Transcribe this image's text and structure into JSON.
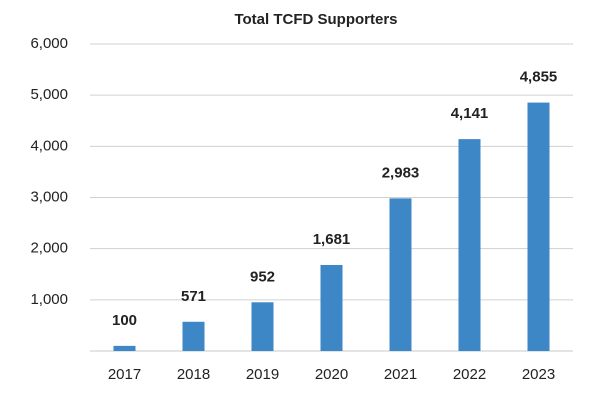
{
  "chart_data": {
    "type": "bar",
    "title": "Total TCFD Supporters",
    "categories": [
      "2017",
      "2018",
      "2019",
      "2020",
      "2021",
      "2022",
      "2023"
    ],
    "values": [
      100,
      571,
      952,
      1681,
      2983,
      4141,
      4855
    ],
    "value_labels": [
      "100",
      "571",
      "952",
      "1,681",
      "2,983",
      "4,141",
      "4,855"
    ],
    "color": "#3d87c6",
    "ylim": [
      0,
      6000
    ],
    "yticks": [
      {
        "value": 1000,
        "label": "1,000"
      },
      {
        "value": 2000,
        "label": "2,000"
      },
      {
        "value": 3000,
        "label": "3,000"
      },
      {
        "value": 4000,
        "label": "4,000"
      },
      {
        "value": 5000,
        "label": "5,000"
      },
      {
        "value": 6000,
        "label": "6,000"
      }
    ],
    "grid": true
  }
}
